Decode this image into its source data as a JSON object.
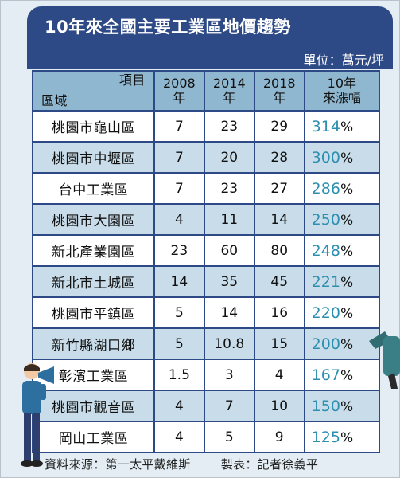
{
  "title": "10年來全國主要工業區地價趨勢",
  "unit": "單位：萬元/坪",
  "chart_data": {
    "type": "table",
    "title": "10年來全國主要工業區地價趨勢",
    "unit": "單位：萬元/坪",
    "header": {
      "item_label": "項目",
      "region_label": "區域",
      "col_2008": "2008年",
      "col_2014": "2014年",
      "col_2018": "2018年",
      "col_growth": "10年來漲幅"
    },
    "rows": [
      {
        "region": "桃園市龜山區",
        "v2008": "7",
        "v2014": "23",
        "v2018": "29",
        "growth": "314",
        "pct": "%"
      },
      {
        "region": "桃園市中壢區",
        "v2008": "7",
        "v2014": "20",
        "v2018": "28",
        "growth": "300",
        "pct": "%"
      },
      {
        "region": "台中工業區",
        "v2008": "7",
        "v2014": "23",
        "v2018": "27",
        "growth": "286",
        "pct": "%"
      },
      {
        "region": "桃園市大園區",
        "v2008": "4",
        "v2014": "11",
        "v2018": "14",
        "growth": "250",
        "pct": "%"
      },
      {
        "region": "新北產業園區",
        "v2008": "23",
        "v2014": "60",
        "v2018": "80",
        "growth": "248",
        "pct": "%"
      },
      {
        "region": "新北市土城區",
        "v2008": "14",
        "v2014": "35",
        "v2018": "45",
        "growth": "221",
        "pct": "%"
      },
      {
        "region": "桃園市平鎮區",
        "v2008": "5",
        "v2014": "14",
        "v2018": "16",
        "growth": "220",
        "pct": "%"
      },
      {
        "region": "新竹縣湖口鄉",
        "v2008": "5",
        "v2014": "10.8",
        "v2018": "15",
        "growth": "200",
        "pct": "%"
      },
      {
        "region": "彰濱工業區",
        "v2008": "1.5",
        "v2014": "3",
        "v2018": "4",
        "growth": "167",
        "pct": "%"
      },
      {
        "region": "桃園市觀音區",
        "v2008": "4",
        "v2014": "7",
        "v2018": "10",
        "growth": "150",
        "pct": "%"
      },
      {
        "region": "岡山工業區",
        "v2008": "4",
        "v2014": "5",
        "v2018": "9",
        "growth": "125",
        "pct": "%"
      }
    ]
  },
  "footer": {
    "source": "資料來源：第一太平戴維斯",
    "credit": "製表：記者徐義平"
  },
  "colors": {
    "title_bg": "#2e4a86",
    "header_bg": "#8fb7cf",
    "row_alt": "#c8dce9",
    "growth_text": "#2c8fb0",
    "page_bg": "#e3edf3"
  }
}
